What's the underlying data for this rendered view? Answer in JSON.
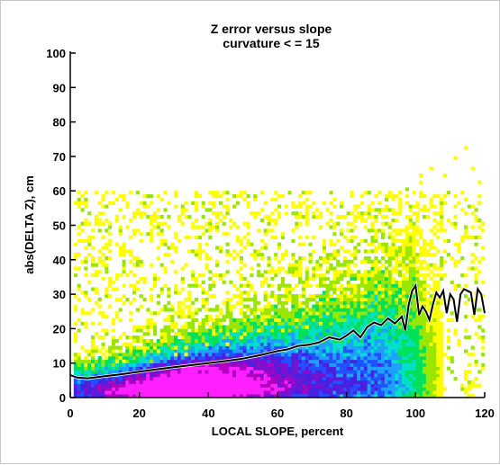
{
  "chart_data": {
    "type": "heatmap",
    "title": "Z error versus slope",
    "subtitle": "curvature < = 15",
    "xlabel": "LOCAL SLOPE, percent",
    "ylabel": "abs(DELTA Z), cm",
    "xlim": [
      0,
      120
    ],
    "ylim": [
      0,
      100
    ],
    "x_ticks": [
      "0",
      "20",
      "40",
      "60",
      "80",
      "100",
      "120"
    ],
    "y_ticks": [
      "0",
      "10",
      "20",
      "30",
      "40",
      "50",
      "60",
      "70",
      "80",
      "90",
      "100"
    ],
    "grid": false,
    "density_colors": [
      "#ffff00",
      "#9be600",
      "#00e05a",
      "#00e0c8",
      "#1ea0ff",
      "#2050ff",
      "#4a20e0",
      "#7a10d0",
      "#b000c0",
      "#ff20ff"
    ],
    "mean_line": {
      "x": [
        0,
        2,
        5,
        10,
        15,
        20,
        25,
        30,
        35,
        40,
        45,
        50,
        55,
        60,
        63,
        66,
        69,
        72,
        75,
        78,
        80,
        82,
        84,
        86,
        88,
        90,
        92,
        94,
        96,
        97,
        98,
        99,
        100,
        101,
        102,
        103,
        104,
        105,
        106,
        107,
        108,
        109,
        110,
        111,
        112,
        113,
        114,
        115,
        116,
        117,
        118,
        119,
        120
      ],
      "y": [
        6.5,
        5.8,
        5.6,
        6.2,
        6.8,
        7.5,
        8.2,
        8.8,
        9.4,
        10.0,
        10.6,
        11.3,
        12.3,
        13.5,
        14.0,
        15.0,
        15.3,
        16.0,
        17.5,
        16.8,
        18.0,
        19.5,
        17.5,
        20.5,
        21.8,
        21.0,
        23.0,
        21.5,
        23.5,
        19.5,
        27.0,
        31.0,
        32.5,
        24.0,
        26.5,
        25.0,
        22.5,
        27.0,
        30.5,
        29.0,
        31.0,
        24.5,
        30.0,
        28.5,
        22.0,
        30.0,
        31.5,
        31.0,
        30.5,
        24.0,
        31.5,
        30.0,
        24.5
      ]
    }
  }
}
